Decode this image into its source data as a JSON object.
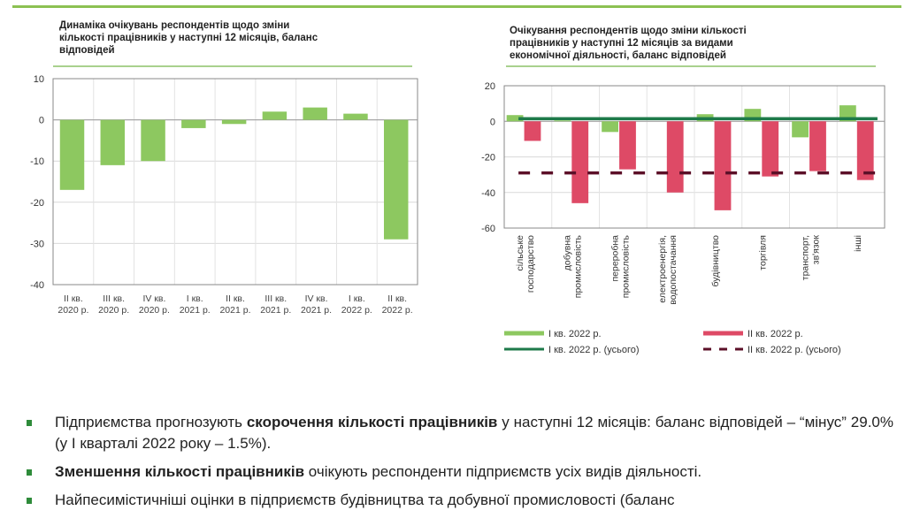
{
  "colors": {
    "q1": "#8dc860",
    "q2": "#de4a66",
    "q1_total": "#1e7a4a",
    "q2_total": "#5c1028",
    "accent": "#8cc152"
  },
  "chart_data": [
    {
      "type": "bar",
      "title": "Динаміка очікувань респондентів щодо зміни кількості працівників у наступні 12 місяців, баланс відповідей",
      "title_lines": [
        "Динаміка очікувань респондентів щодо зміни",
        "кількості працівників у наступні 12 місяців, баланс",
        "відповідей"
      ],
      "categories": [
        [
          "II кв.",
          "2020 р."
        ],
        [
          "III кв.",
          "2020 р."
        ],
        [
          "IV кв.",
          "2020 р."
        ],
        [
          "I кв.",
          "2021 р."
        ],
        [
          "II кв.",
          "2021 р."
        ],
        [
          "III кв.",
          "2021 р."
        ],
        [
          "IV кв.",
          "2021 р."
        ],
        [
          "I кв.",
          "2022 р."
        ],
        [
          "II кв.",
          "2022 р."
        ]
      ],
      "values": [
        -17,
        -11,
        -10,
        -2,
        -1,
        2,
        3,
        1.5,
        -29
      ],
      "ylim": [
        -40,
        10
      ],
      "yticks": [
        "10",
        "0",
        "-10",
        "-20",
        "-30",
        "-40"
      ],
      "grid": true
    },
    {
      "type": "bar",
      "title": "Очікування респондентів щодо зміни кількості працівників у наступні 12 місяців за видами економічної діяльності, баланс відповідей",
      "title_lines": [
        "Очікування респондентів щодо зміни кількості",
        "працівників у наступні 12 місяців за видами",
        "економічної діяльності, баланс відповідей"
      ],
      "categories": [
        [
          "сільське",
          "господарство"
        ],
        [
          "добувна",
          "промисловість"
        ],
        [
          "переробна",
          "промисловість"
        ],
        [
          "електроенергія,",
          "водопостачання"
        ],
        [
          "будівництво"
        ],
        [
          "торгівля"
        ],
        [
          "транспорт,",
          "зв'язок"
        ],
        [
          "інші"
        ]
      ],
      "series": [
        {
          "name": "I кв. 2022 р.",
          "values": [
            3.5,
            0.5,
            -6,
            0,
            4,
            7,
            -9,
            9
          ]
        },
        {
          "name": "II кв. 2022 р.",
          "values": [
            -11,
            -46,
            -27,
            -40,
            -50,
            -31,
            -28,
            -33
          ]
        }
      ],
      "lines": [
        {
          "name": "I кв. 2022 р. (усього)",
          "value": 1.5
        },
        {
          "name": "II кв. 2022 р. (усього)",
          "value": -29
        }
      ],
      "ylim": [
        -60,
        20
      ],
      "yticks": [
        "20",
        "0",
        "-20",
        "-40",
        "-60"
      ],
      "grid": true,
      "legend": "bottom"
    }
  ],
  "bullets": [
    {
      "pre": "Підприємства прогнозують ",
      "bold": "скорочення кількості працівників",
      "post": " у наступні 12 місяців: баланс відповідей – “мінус” 29.0% (у І кварталі 2022 року – 1.5%)."
    },
    {
      "pre": "",
      "bold": "Зменшення кількості працівників",
      "post": " очікують респонденти підприємств усіх видів діяльності."
    },
    {
      "pre": "Найпесимістичніші оцінки в підприємств будівництва та добувної промисловості (баланс",
      "bold": "",
      "post": ""
    }
  ]
}
